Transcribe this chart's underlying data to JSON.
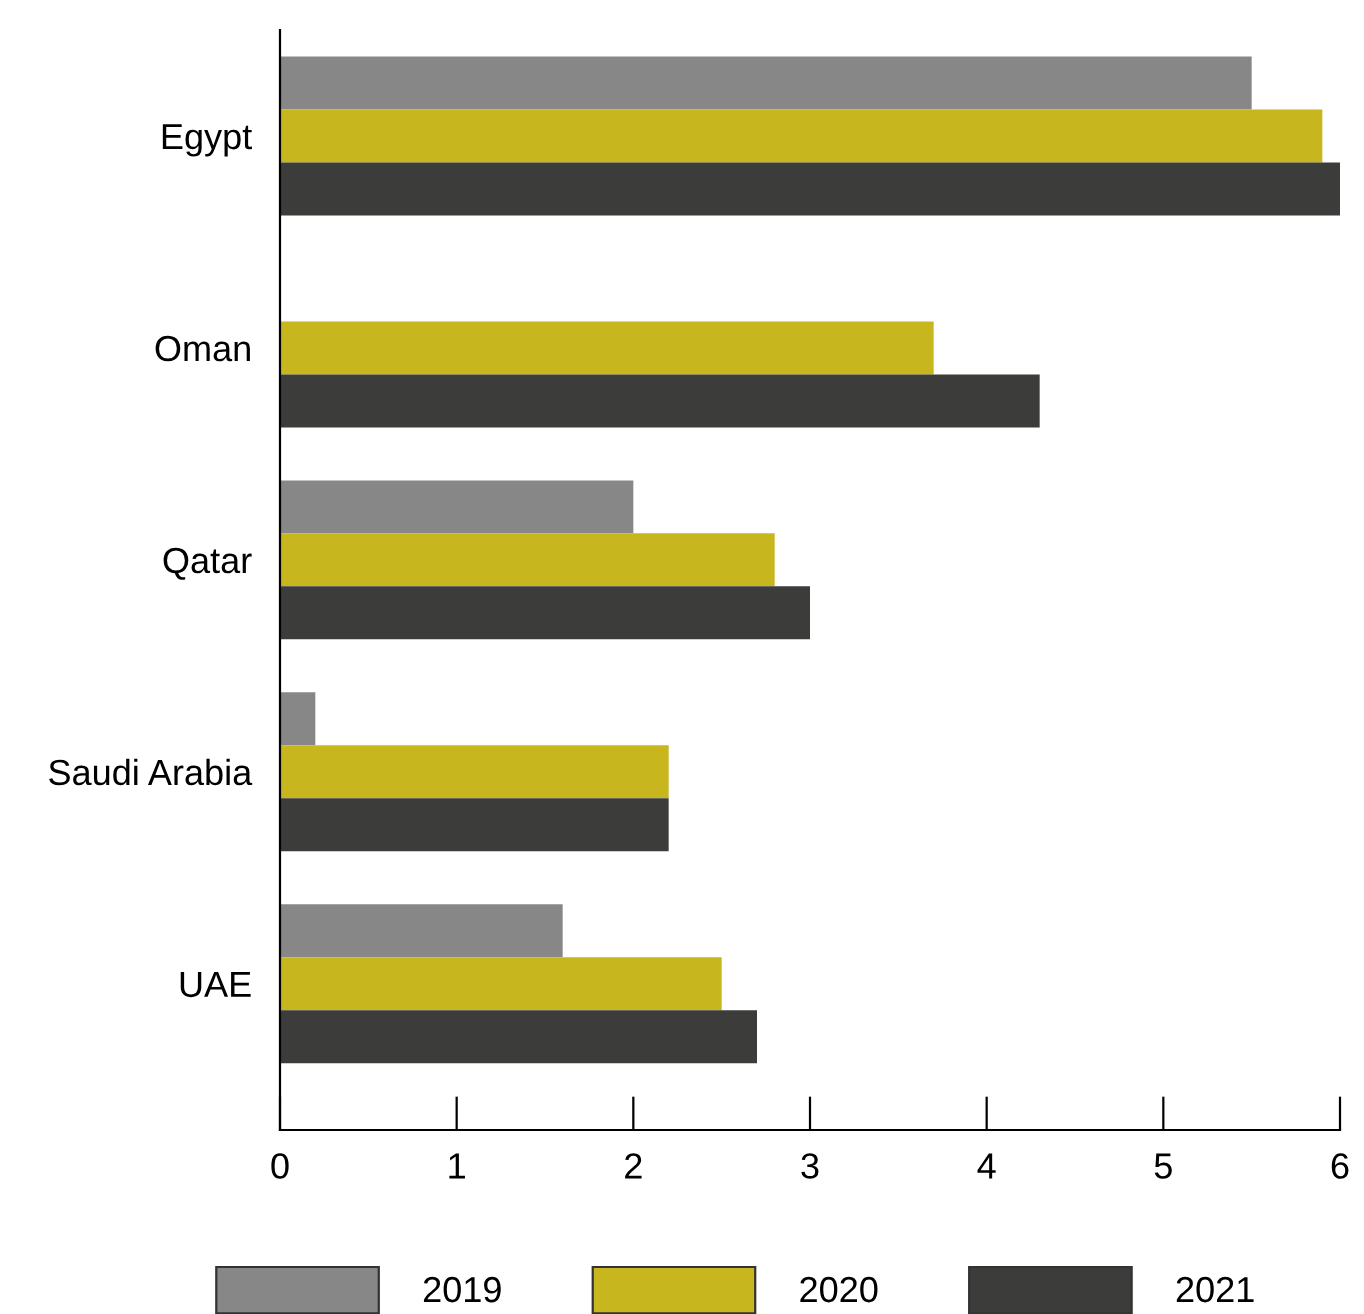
{
  "chart_data": {
    "type": "bar",
    "orientation": "horizontal",
    "categories": [
      "Egypt",
      "Oman",
      "Qatar",
      "Saudi Arabia",
      "UAE"
    ],
    "series": [
      {
        "name": "2019",
        "color": "#878787",
        "values": [
          5.5,
          0,
          2.0,
          0.2,
          1.6
        ]
      },
      {
        "name": "2020",
        "color": "#c8b61e",
        "values": [
          5.9,
          3.7,
          2.8,
          2.2,
          2.5
        ]
      },
      {
        "name": "2021",
        "color": "#3c3c3b",
        "values": [
          6.0,
          4.3,
          3.0,
          2.2,
          2.7
        ]
      }
    ],
    "xlim": [
      0,
      6
    ],
    "xticks": [
      0,
      1,
      2,
      3,
      4,
      5,
      6
    ],
    "grid": false,
    "legend": "bottom"
  }
}
